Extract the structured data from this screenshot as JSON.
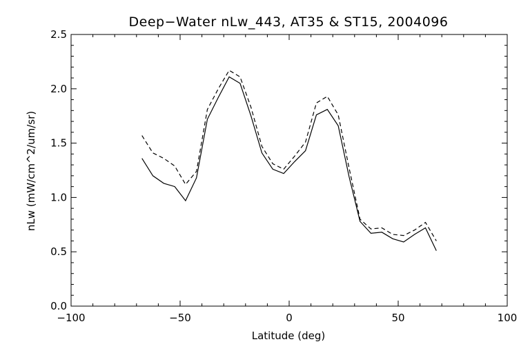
{
  "chart_data": {
    "type": "line",
    "title": "Deep−Water nLw_443, AT35 & ST15, 2004096",
    "xlabel": "Latitude (deg)",
    "ylabel": "nLw (mW/cm^2/um/sr)",
    "xlim": [
      -100,
      100
    ],
    "ylim": [
      0.0,
      2.5
    ],
    "x_ticks": [
      -100,
      -50,
      0,
      50,
      100
    ],
    "x_tick_labels": [
      "−100",
      "−50",
      "0",
      "50",
      "100"
    ],
    "y_ticks": [
      0.0,
      0.5,
      1.0,
      1.5,
      2.0,
      2.5
    ],
    "y_tick_labels": [
      "0.0",
      "0.5",
      "1.0",
      "1.5",
      "2.0",
      "2.5"
    ],
    "grid": false,
    "legend": "none",
    "series": [
      {
        "style": "solid",
        "color": "#000000",
        "x": [
          -67.5,
          -62.5,
          -57.5,
          -52.5,
          -47.5,
          -42.5,
          -37.5,
          -32.5,
          -27.5,
          -22.5,
          -17.5,
          -12.5,
          -7.5,
          -2.5,
          2.5,
          7.5,
          12.5,
          17.5,
          22.5,
          27.5,
          32.5,
          37.5,
          42.5,
          47.5,
          52.5,
          57.5,
          62.5,
          67.5
        ],
        "y": [
          1.36,
          1.2,
          1.13,
          1.1,
          0.97,
          1.18,
          1.72,
          1.92,
          2.11,
          2.05,
          1.75,
          1.41,
          1.26,
          1.22,
          1.33,
          1.43,
          1.76,
          1.81,
          1.66,
          1.19,
          0.78,
          0.67,
          0.68,
          0.62,
          0.59,
          0.66,
          0.72,
          0.51
        ]
      },
      {
        "style": "dashed",
        "color": "#000000",
        "x": [
          -67.5,
          -62.5,
          -57.5,
          -52.5,
          -47.5,
          -42.5,
          -37.5,
          -32.5,
          -27.5,
          -22.5,
          -17.5,
          -12.5,
          -7.5,
          -2.5,
          2.5,
          7.5,
          12.5,
          17.5,
          22.5,
          27.5,
          32.5,
          37.5,
          42.5,
          47.5,
          52.5,
          57.5,
          62.5,
          67.5
        ],
        "y": [
          1.57,
          1.41,
          1.36,
          1.29,
          1.12,
          1.24,
          1.81,
          2.0,
          2.17,
          2.11,
          1.83,
          1.47,
          1.31,
          1.26,
          1.38,
          1.51,
          1.87,
          1.93,
          1.76,
          1.27,
          0.8,
          0.71,
          0.72,
          0.66,
          0.65,
          0.7,
          0.77,
          0.6
        ]
      }
    ]
  }
}
